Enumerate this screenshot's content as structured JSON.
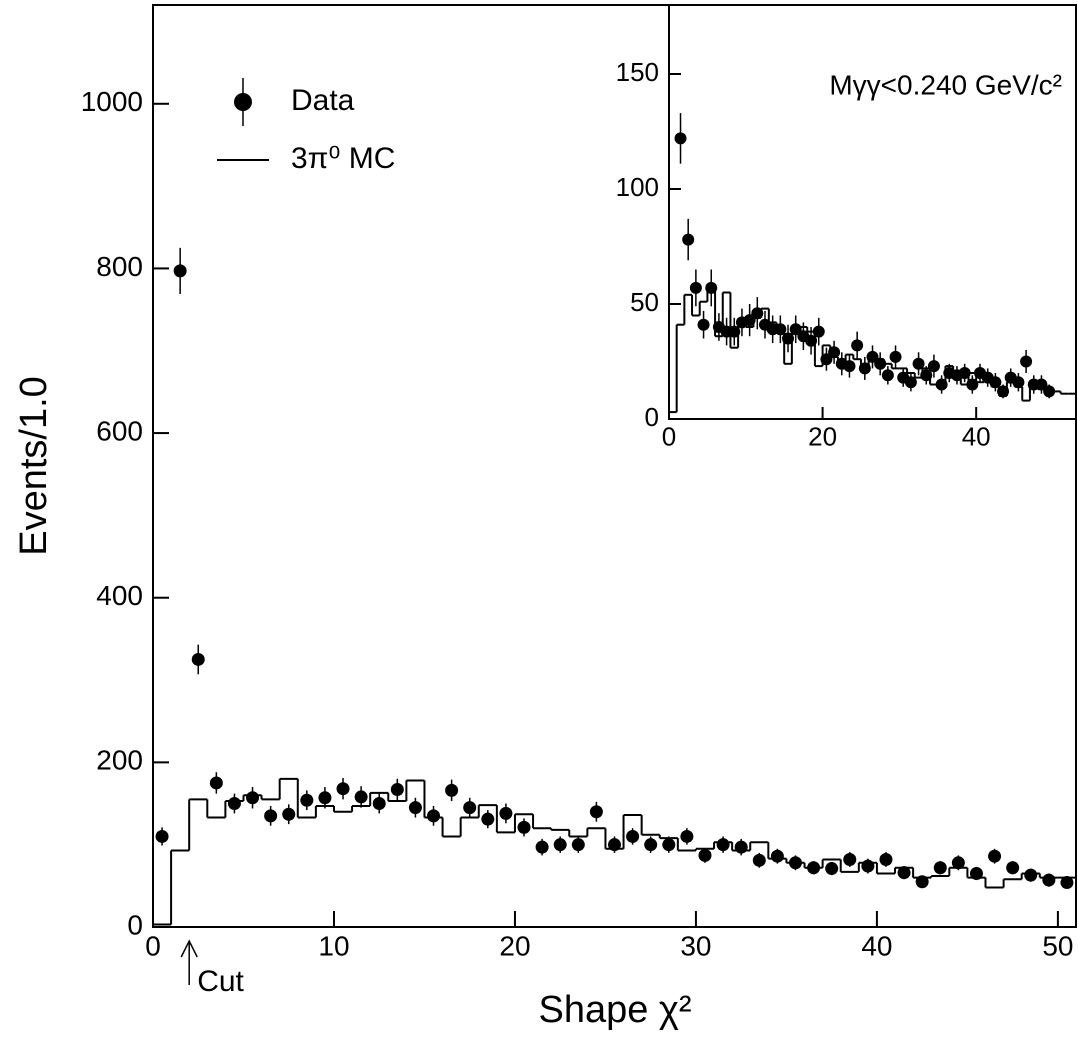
{
  "chart_data": [
    {
      "type": "histogram",
      "xlabel": "Shape χ²",
      "ylabel": "Events/1.0",
      "xlim": [
        0,
        51
      ],
      "ylim": [
        0,
        1120
      ],
      "xticks": [
        0,
        10,
        20,
        30,
        40,
        50
      ],
      "yticks": [
        0,
        200,
        400,
        600,
        800,
        1000
      ],
      "legend": "upper left",
      "annotations": [
        {
          "text": "Cut",
          "x": 2
        }
      ],
      "series": [
        {
          "name": "Data",
          "kind": "points",
          "color": "#000000",
          "x": [
            0.5,
            1.5,
            2.5,
            3.5,
            4.5,
            5.5,
            6.5,
            7.5,
            8.5,
            9.5,
            10.5,
            11.5,
            12.5,
            13.5,
            14.5,
            15.5,
            16.5,
            17.5,
            18.5,
            19.5,
            20.5,
            21.5,
            22.5,
            23.5,
            24.5,
            25.5,
            26.5,
            27.5,
            28.5,
            29.5,
            30.5,
            31.5,
            32.5,
            33.5,
            34.5,
            35.5,
            36.5,
            37.5,
            38.5,
            39.5,
            40.5,
            41.5,
            42.5,
            43.5,
            44.5,
            45.5,
            46.5,
            47.5,
            48.5,
            49.5,
            50.5
          ],
          "values": [
            110,
            797,
            325,
            175,
            150,
            157,
            135,
            137,
            154,
            157,
            168,
            158,
            150,
            167,
            145,
            135,
            166,
            145,
            131,
            138,
            121,
            97,
            100,
            100,
            140,
            100,
            110,
            100,
            100,
            110,
            87,
            100,
            97,
            81,
            86,
            78,
            72,
            71,
            82,
            74,
            82,
            66,
            55,
            72,
            78,
            65,
            86,
            72,
            63,
            57,
            54
          ],
          "errors": [
            11,
            28,
            18,
            13,
            12,
            13,
            12,
            12,
            12,
            13,
            13,
            13,
            12,
            13,
            12,
            12,
            13,
            12,
            11,
            12,
            11,
            10,
            10,
            10,
            12,
            10,
            10,
            10,
            10,
            10,
            9,
            10,
            10,
            9,
            9,
            9,
            8,
            8,
            9,
            9,
            9,
            8,
            7,
            8,
            9,
            8,
            9,
            8,
            8,
            8,
            7
          ]
        },
        {
          "name": "3π⁰ MC",
          "kind": "step",
          "color": "#000000",
          "bins": [
            0,
            1,
            2,
            3,
            4,
            5,
            6,
            7,
            8,
            9,
            10,
            11,
            12,
            13,
            14,
            15,
            16,
            17,
            18,
            19,
            20,
            21,
            22,
            23,
            24,
            25,
            26,
            27,
            28,
            29,
            30,
            31,
            32,
            33,
            34,
            35,
            36,
            37,
            38,
            39,
            40,
            41,
            42,
            43,
            44,
            45,
            46,
            47,
            48,
            49,
            50,
            51
          ],
          "values": [
            3,
            93,
            155,
            133,
            153,
            160,
            155,
            180,
            133,
            147,
            140,
            147,
            163,
            153,
            178,
            133,
            110,
            133,
            148,
            115,
            137,
            120,
            118,
            110,
            120,
            95,
            136,
            112,
            108,
            93,
            95,
            103,
            93,
            103,
            83,
            78,
            72,
            82,
            67,
            78,
            65,
            72,
            60,
            62,
            72,
            60,
            48,
            58,
            65,
            60,
            60
          ]
        }
      ]
    },
    {
      "type": "histogram",
      "annotation": "Mγγ<0.240 GeV/c²",
      "xlim": [
        0,
        53
      ],
      "ylim": [
        0,
        180
      ],
      "xticks": [
        0,
        20,
        40
      ],
      "yticks": [
        0,
        50,
        100,
        150
      ],
      "series": [
        {
          "kind": "points",
          "color": "#000000",
          "x": [
            1.5,
            2.5,
            3.5,
            4.5,
            5.5,
            6.5,
            7.5,
            8.5,
            9.5,
            10.5,
            11.5,
            12.5,
            13.5,
            14.5,
            15.5,
            16.5,
            17.5,
            18.5,
            19.5,
            20.5,
            21.5,
            22.5,
            23.5,
            24.5,
            25.5,
            26.5,
            27.5,
            28.5,
            29.5,
            30.5,
            31.5,
            32.5,
            33.5,
            34.5,
            35.5,
            36.5,
            37.5,
            38.5,
            39.5,
            40.5,
            41.5,
            42.5,
            43.5,
            44.5,
            45.5,
            46.5,
            47.5,
            48.5,
            49.5
          ],
          "values": [
            122,
            78,
            57,
            41,
            57,
            40,
            38,
            38,
            42,
            43,
            46,
            41,
            39,
            39,
            35,
            39,
            36,
            34,
            38,
            26,
            29,
            24,
            23,
            32,
            22,
            27,
            24,
            19,
            27,
            18,
            16,
            24,
            19,
            23,
            15,
            20,
            19,
            20,
            15,
            20,
            18,
            16,
            12,
            18,
            16,
            25,
            15,
            15,
            12
          ],
          "errors": [
            11,
            9,
            8,
            6,
            8,
            6,
            6,
            6,
            6,
            7,
            7,
            6,
            6,
            6,
            6,
            6,
            6,
            6,
            6,
            5,
            5,
            5,
            5,
            6,
            5,
            5,
            5,
            4,
            5,
            4,
            4,
            5,
            4,
            5,
            4,
            4,
            4,
            4,
            4,
            4,
            4,
            4,
            3,
            4,
            4,
            5,
            4,
            4,
            3
          ]
        },
        {
          "kind": "step",
          "color": "#000000",
          "bins": [
            0,
            1,
            2,
            3,
            4,
            5,
            6,
            7,
            8,
            9,
            10,
            11,
            12,
            13,
            14,
            15,
            16,
            17,
            18,
            19,
            20,
            21,
            22,
            23,
            24,
            25,
            26,
            27,
            28,
            29,
            30,
            31,
            32,
            33,
            34,
            35,
            36,
            37,
            38,
            39,
            40,
            41,
            42,
            43,
            44,
            45,
            46,
            47,
            48,
            49,
            50,
            51,
            52,
            53
          ],
          "values": [
            3,
            41,
            54,
            45,
            51,
            58,
            36,
            55,
            31,
            42,
            40,
            44,
            48,
            42,
            40,
            24,
            40,
            40,
            38,
            23,
            32,
            27,
            24,
            28,
            26,
            21,
            26,
            26,
            24,
            22,
            22,
            20,
            18,
            22,
            15,
            14,
            23,
            18,
            15,
            20,
            16,
            18,
            14,
            10,
            16,
            14,
            8,
            14,
            13,
            12,
            12,
            11,
            11
          ]
        }
      ]
    }
  ]
}
